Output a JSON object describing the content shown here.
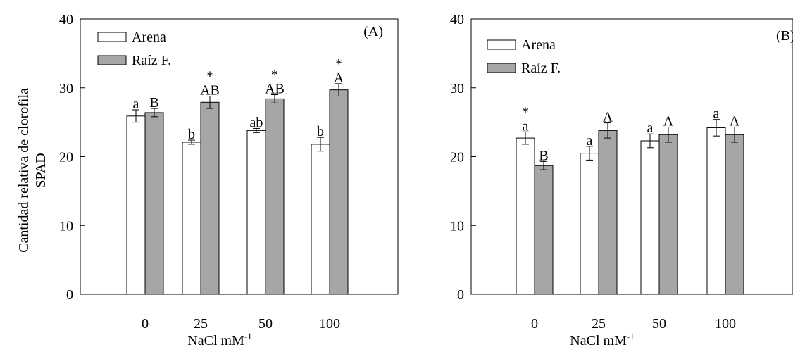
{
  "figure": {
    "ylabel_line1": "Cantidad relativa de clorofila",
    "ylabel_line2": "SPAD"
  },
  "chart_data": [
    {
      "type": "bar",
      "panel_label": "(A)",
      "categories": [
        "0",
        "25",
        "50",
        "100"
      ],
      "xlabel": "NaCl mM",
      "xlabel_sup": "-1",
      "ylim": [
        0,
        40
      ],
      "yticks": [
        0,
        10,
        20,
        30,
        40
      ],
      "grid": false,
      "legend_position": "top-left",
      "series": [
        {
          "name": "Arena",
          "color": "#ffffff",
          "values": [
            25.9,
            22.1,
            23.8,
            21.8
          ],
          "errors": [
            0.9,
            0.3,
            0.3,
            1.0
          ],
          "letters": [
            "a",
            "b",
            "ab",
            "b"
          ],
          "stars": [
            "",
            "",
            "",
            ""
          ]
        },
        {
          "name": "Raíz F.",
          "color": "#a6a6a6",
          "values": [
            26.4,
            27.9,
            28.4,
            29.7
          ],
          "errors": [
            0.6,
            0.9,
            0.6,
            0.9
          ],
          "letters": [
            "B",
            "AB",
            "AB",
            "A"
          ],
          "stars": [
            "",
            "*",
            "*",
            "*"
          ]
        }
      ]
    },
    {
      "type": "bar",
      "panel_label": "(B)",
      "categories": [
        "0",
        "25",
        "50",
        "100"
      ],
      "xlabel": "NaCl mM",
      "xlabel_sup": "-1",
      "ylim": [
        0,
        40
      ],
      "yticks": [
        0,
        10,
        20,
        30,
        40
      ],
      "grid": false,
      "legend_position": "top-left",
      "series": [
        {
          "name": "Arena",
          "color": "#ffffff",
          "values": [
            22.7,
            20.5,
            22.3,
            24.2
          ],
          "errors": [
            0.9,
            1.0,
            1.0,
            1.2
          ],
          "letters": [
            "a",
            "a",
            "a",
            "a"
          ],
          "stars": [
            "*",
            "",
            "",
            ""
          ]
        },
        {
          "name": "Raíz F.",
          "color": "#a6a6a6",
          "values": [
            18.7,
            23.8,
            23.2,
            23.2
          ],
          "errors": [
            0.6,
            1.1,
            1.1,
            1.1
          ],
          "letters": [
            "B",
            "A",
            "A",
            "A"
          ],
          "stars": [
            "",
            "",
            "",
            ""
          ]
        }
      ]
    }
  ]
}
